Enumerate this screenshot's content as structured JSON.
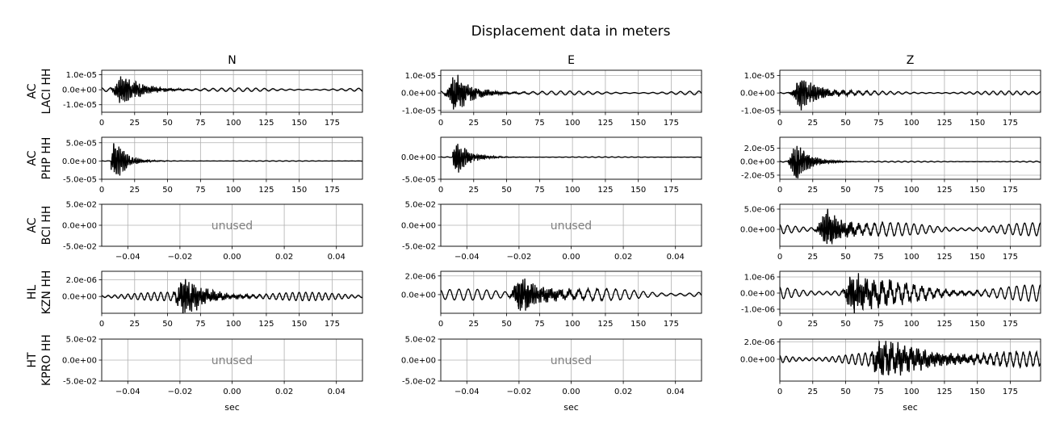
{
  "title": "Displacement data in meters",
  "columns": [
    "N",
    "E",
    "Z"
  ],
  "rows": [
    {
      "network": "AC",
      "station": "LACI HH"
    },
    {
      "network": "AC",
      "station": "PHP HH"
    },
    {
      "network": "AC",
      "station": "BCI HH"
    },
    {
      "network": "HL",
      "station": "KZN HH"
    },
    {
      "network": "HT",
      "station": "KPRO HH"
    }
  ],
  "xlabel": "sec",
  "unused_label": "unused",
  "colors": {
    "trace": "#000000",
    "grid": "#b0b0b0",
    "unused_text": "#808080"
  },
  "chart_data": {
    "type": "line",
    "grid": true,
    "panels": [
      {
        "row": 0,
        "col": 0,
        "used": true,
        "xlim": [
          0,
          198
        ],
        "ylim": [
          -1.5e-05,
          1.3e-05
        ],
        "xticks": [
          0,
          25,
          50,
          75,
          100,
          125,
          150,
          175
        ],
        "xticklabels": [
          "0",
          "25",
          "50",
          "75",
          "100",
          "125",
          "150",
          "175"
        ],
        "yticks": [
          1e-05,
          0,
          -1e-05
        ],
        "yticklabels": [
          "1.0e-05",
          "0.0e+00",
          "-1.0e-05"
        ],
        "trace": {
          "duration": 198,
          "onset": 3,
          "peak_time": 15,
          "peak_amp": 1.2e-05,
          "decay": 14,
          "coda_amp": 1.2e-06,
          "coda_period": 6.5,
          "seed": 11
        }
      },
      {
        "row": 0,
        "col": 1,
        "used": true,
        "xlim": [
          0,
          198
        ],
        "ylim": [
          -1.1e-05,
          1.3e-05
        ],
        "xticks": [
          0,
          25,
          50,
          75,
          100,
          125,
          150,
          175
        ],
        "xticklabels": [
          "0",
          "25",
          "50",
          "75",
          "100",
          "125",
          "150",
          "175"
        ],
        "yticks": [
          1e-05,
          0,
          -1e-05
        ],
        "yticklabels": [
          "1.0e-05",
          "0.0e+00",
          "-1.0e-05"
        ],
        "trace": {
          "duration": 198,
          "onset": 2,
          "peak_time": 11,
          "peak_amp": 1.2e-05,
          "decay": 13,
          "coda_amp": 1.1e-06,
          "coda_period": 7,
          "seed": 23
        }
      },
      {
        "row": 0,
        "col": 2,
        "used": true,
        "xlim": [
          0,
          198
        ],
        "ylim": [
          -1.1e-05,
          1.3e-05
        ],
        "xticks": [
          0,
          25,
          50,
          75,
          100,
          125,
          150,
          175
        ],
        "xticklabels": [
          "0",
          "25",
          "50",
          "75",
          "100",
          "125",
          "150",
          "175"
        ],
        "yticks": [
          1e-05,
          0,
          -1e-05
        ],
        "yticklabels": [
          "1.0e-05",
          "0.0e+00",
          "-1.0e-05"
        ],
        "trace": {
          "duration": 198,
          "onset": 3,
          "peak_time": 16,
          "peak_amp": 1.1e-05,
          "decay": 14,
          "coda_amp": 1.1e-06,
          "coda_period": 6,
          "seed": 37
        }
      },
      {
        "row": 1,
        "col": 0,
        "used": true,
        "xlim": [
          0,
          198
        ],
        "ylim": [
          -5e-05,
          6.5e-05
        ],
        "xticks": [
          0,
          25,
          50,
          75,
          100,
          125,
          150,
          175
        ],
        "xticklabels": [
          "0",
          "25",
          "50",
          "75",
          "100",
          "125",
          "150",
          "175"
        ],
        "yticks": [
          5e-05,
          0,
          -5e-05
        ],
        "yticklabels": [
          "5.0e-05",
          "0.0e+00",
          "-5.0e-05"
        ],
        "trace": {
          "duration": 198,
          "onset": 7,
          "peak_time": 11,
          "peak_amp": 6e-05,
          "decay": 8,
          "coda_amp": 8e-07,
          "coda_period": 5,
          "seed": 41
        }
      },
      {
        "row": 1,
        "col": 1,
        "used": true,
        "xlim": [
          0,
          198
        ],
        "ylim": [
          -5e-05,
          4.5e-05
        ],
        "xticks": [
          0,
          25,
          50,
          75,
          100,
          125,
          150,
          175
        ],
        "xticklabels": [
          "0",
          "25",
          "50",
          "75",
          "100",
          "125",
          "150",
          "175"
        ],
        "yticks": [
          0,
          -5e-05
        ],
        "yticklabels": [
          "0.0e+00",
          "-5.0e-05"
        ],
        "trace": {
          "duration": 198,
          "onset": 9,
          "peak_time": 13,
          "peak_amp": 4e-05,
          "decay": 9,
          "coda_amp": 8e-07,
          "coda_period": 5,
          "seed": 53
        }
      },
      {
        "row": 1,
        "col": 2,
        "used": true,
        "xlim": [
          0,
          198
        ],
        "ylim": [
          -2.6e-05,
          3.6e-05
        ],
        "xticks": [
          0,
          25,
          50,
          75,
          100,
          125,
          150,
          175
        ],
        "xticklabels": [
          "0",
          "25",
          "50",
          "75",
          "100",
          "125",
          "150",
          "175"
        ],
        "yticks": [
          2e-05,
          0,
          -2e-05
        ],
        "yticklabels": [
          "2.0e-05",
          "0.0e+00",
          "-2.0e-05"
        ],
        "trace": {
          "duration": 198,
          "onset": 6,
          "peak_time": 13,
          "peak_amp": 3e-05,
          "decay": 10,
          "coda_amp": 8e-07,
          "coda_period": 5,
          "seed": 67
        }
      },
      {
        "row": 2,
        "col": 0,
        "used": false,
        "xlim": [
          -0.05,
          0.05
        ],
        "ylim": [
          -0.05,
          0.05
        ],
        "xticks": [
          -0.04,
          -0.02,
          0,
          0.02,
          0.04
        ],
        "xticklabels": [
          "−0.04",
          "−0.02",
          "0.00",
          "0.02",
          "0.04"
        ],
        "yticks": [
          0.05,
          0,
          -0.05
        ],
        "yticklabels": [
          "5.0e-02",
          "0.0e+00",
          "-5.0e-02"
        ]
      },
      {
        "row": 2,
        "col": 1,
        "used": false,
        "xlim": [
          -0.05,
          0.05
        ],
        "ylim": [
          -0.05,
          0.05
        ],
        "xticks": [
          -0.04,
          -0.02,
          0,
          0.02,
          0.04
        ],
        "xticklabels": [
          "−0.04",
          "−0.02",
          "0.00",
          "0.02",
          "0.04"
        ],
        "yticks": [
          0.05,
          0,
          -0.05
        ],
        "yticklabels": [
          "5.0e-02",
          "0.0e+00",
          "-5.0e-02"
        ]
      },
      {
        "row": 2,
        "col": 2,
        "used": true,
        "xlim": [
          0,
          198
        ],
        "ylim": [
          -4.2e-06,
          6.2e-06
        ],
        "xticks": [
          0,
          25,
          50,
          75,
          100,
          125,
          150,
          175
        ],
        "xticklabels": [
          "0",
          "25",
          "50",
          "75",
          "100",
          "125",
          "150",
          "175"
        ],
        "yticks": [
          5e-06,
          0
        ],
        "yticklabels": [
          "5.0e-06",
          "0.0e+00"
        ],
        "trace": {
          "duration": 198,
          "onset": 0,
          "peak_time": 35,
          "peak_amp": 5.5e-06,
          "decay": 14,
          "coda_amp": 1.6e-06,
          "coda_period": 6,
          "seed": 79
        }
      },
      {
        "row": 3,
        "col": 0,
        "used": true,
        "xlim": [
          0,
          198
        ],
        "ylim": [
          -2e-06,
          3e-06
        ],
        "xticks": [
          0,
          25,
          50,
          75,
          100,
          125,
          150,
          175
        ],
        "xticklabels": [
          "0",
          "25",
          "50",
          "75",
          "100",
          "125",
          "150",
          "175"
        ],
        "yticks": [
          2e-06,
          0
        ],
        "yticklabels": [
          "2.0e-06",
          "0.0e+00"
        ],
        "trace": {
          "duration": 198,
          "onset": 0,
          "peak_time": 62,
          "peak_amp": 2.6e-06,
          "decay": 16,
          "coda_amp": 5e-07,
          "coda_period": 5,
          "seed": 83
        }
      },
      {
        "row": 3,
        "col": 1,
        "used": true,
        "xlim": [
          0,
          198
        ],
        "ylim": [
          -2e-06,
          2.5e-06
        ],
        "xticks": [
          0,
          25,
          50,
          75,
          100,
          125,
          150,
          175
        ],
        "xticklabels": [
          "0",
          "25",
          "50",
          "75",
          "100",
          "125",
          "150",
          "175"
        ],
        "yticks": [
          2e-06,
          0
        ],
        "yticklabels": [
          "2.0e-06",
          "0.0e+00"
        ],
        "trace": {
          "duration": 198,
          "onset": 0,
          "peak_time": 60,
          "peak_amp": 2.2e-06,
          "decay": 20,
          "coda_amp": 6e-07,
          "coda_period": 7,
          "seed": 97
        }
      },
      {
        "row": 3,
        "col": 2,
        "used": true,
        "xlim": [
          0,
          198
        ],
        "ylim": [
          -1.25e-06,
          1.35e-06
        ],
        "xticks": [
          0,
          25,
          50,
          75,
          100,
          125,
          150,
          175
        ],
        "xticklabels": [
          "0",
          "25",
          "50",
          "75",
          "100",
          "125",
          "150",
          "175"
        ],
        "yticks": [
          1e-06,
          0,
          -1e-06
        ],
        "yticklabels": [
          "1.0e-06",
          "0.0e+00",
          "-1.0e-06"
        ],
        "trace": {
          "duration": 198,
          "onset": 0,
          "peak_time": 55,
          "peak_amp": 1.25e-06,
          "decay": 30,
          "coda_amp": 5e-07,
          "coda_period": 6,
          "seed": 101
        }
      },
      {
        "row": 4,
        "col": 0,
        "used": false,
        "xlim": [
          -0.05,
          0.05
        ],
        "ylim": [
          -0.05,
          0.05
        ],
        "xticks": [
          -0.04,
          -0.02,
          0,
          0.02,
          0.04
        ],
        "xticklabels": [
          "−0.04",
          "−0.02",
          "0.00",
          "0.02",
          "0.04"
        ],
        "yticks": [
          0.05,
          0,
          -0.05
        ],
        "yticklabels": [
          "5.0e-02",
          "0.0e+00",
          "-5.0e-02"
        ]
      },
      {
        "row": 4,
        "col": 1,
        "used": false,
        "xlim": [
          -0.05,
          0.05
        ],
        "ylim": [
          -0.05,
          0.05
        ],
        "xticks": [
          -0.04,
          -0.02,
          0,
          0.02,
          0.04
        ],
        "xticklabels": [
          "−0.04",
          "−0.02",
          "0.00",
          "0.02",
          "0.04"
        ],
        "yticks": [
          0.05,
          0,
          -0.05
        ],
        "yticklabels": [
          "5.0e-02",
          "0.0e+00",
          "-5.0e-02"
        ]
      },
      {
        "row": 4,
        "col": 2,
        "used": true,
        "xlim": [
          0,
          198
        ],
        "ylim": [
          -2.5e-06,
          2.3e-06
        ],
        "xticks": [
          0,
          25,
          50,
          75,
          100,
          125,
          150,
          175
        ],
        "xticklabels": [
          "0",
          "25",
          "50",
          "75",
          "100",
          "125",
          "150",
          "175"
        ],
        "yticks": [
          2e-06,
          0
        ],
        "yticklabels": [
          "2.0e-06",
          "0.0e+00"
        ],
        "trace": {
          "duration": 198,
          "onset": 0,
          "peak_time": 75,
          "peak_amp": 2.1e-06,
          "decay": 45,
          "coda_amp": 8e-07,
          "coda_period": 5,
          "seed": 113
        }
      }
    ]
  }
}
